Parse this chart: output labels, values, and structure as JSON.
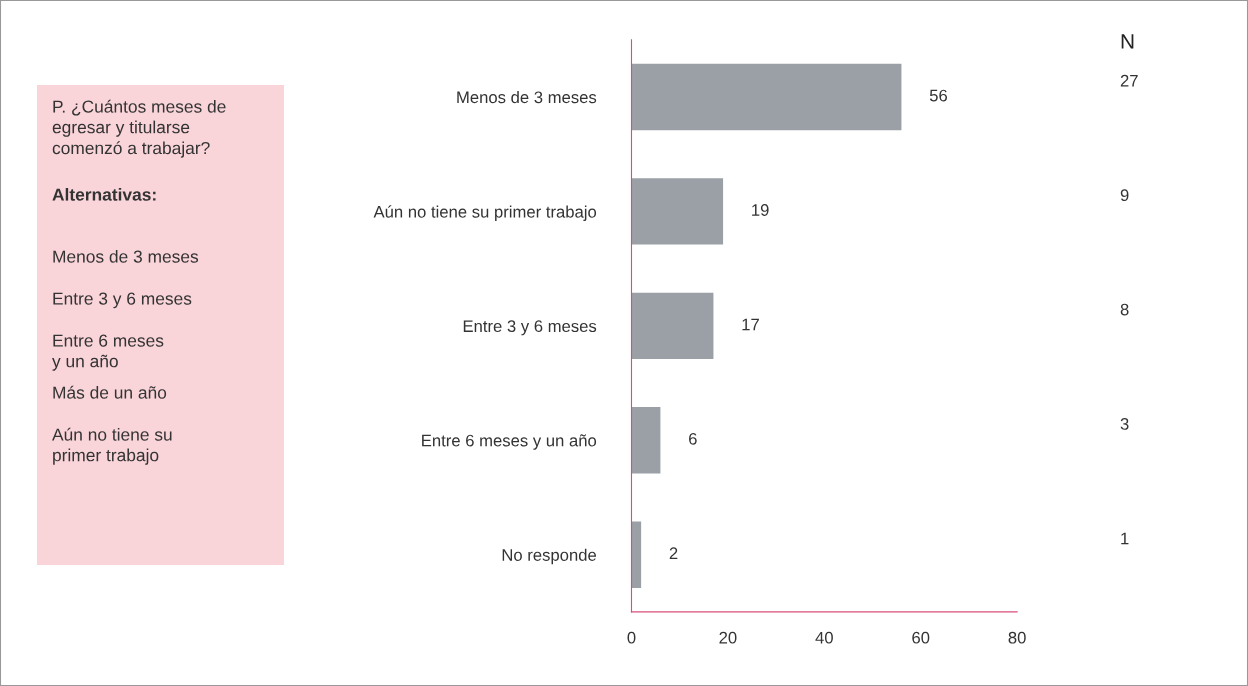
{
  "chart_data": {
    "type": "bar",
    "orientation": "horizontal",
    "categories": [
      "Menos de 3 meses",
      "Aún no tiene su primer trabajo",
      "Entre 3 y 6 meses",
      "Entre 6 meses y un año",
      "No responde"
    ],
    "values": [
      56,
      19,
      17,
      6,
      2
    ],
    "color": "#9aa0a6",
    "data_labels": true,
    "xlim": [
      0,
      80
    ],
    "xticks": [
      0,
      20,
      40,
      60,
      80
    ],
    "grid": false,
    "legend": false,
    "annotations": [
      "P. ¿Cuántos meses de\negresar y titularse\ncomenzó a trabajar?",
      "Alternativas:",
      "Menos de 3 meses",
      "Entre 3 y 6 meses",
      "Entre 6 meses\ny un año",
      "Más de un año",
      "Aún no tiene su\nprimer trabajo",
      "N",
      "27",
      "9",
      "8",
      "3",
      "1"
    ]
  }
}
